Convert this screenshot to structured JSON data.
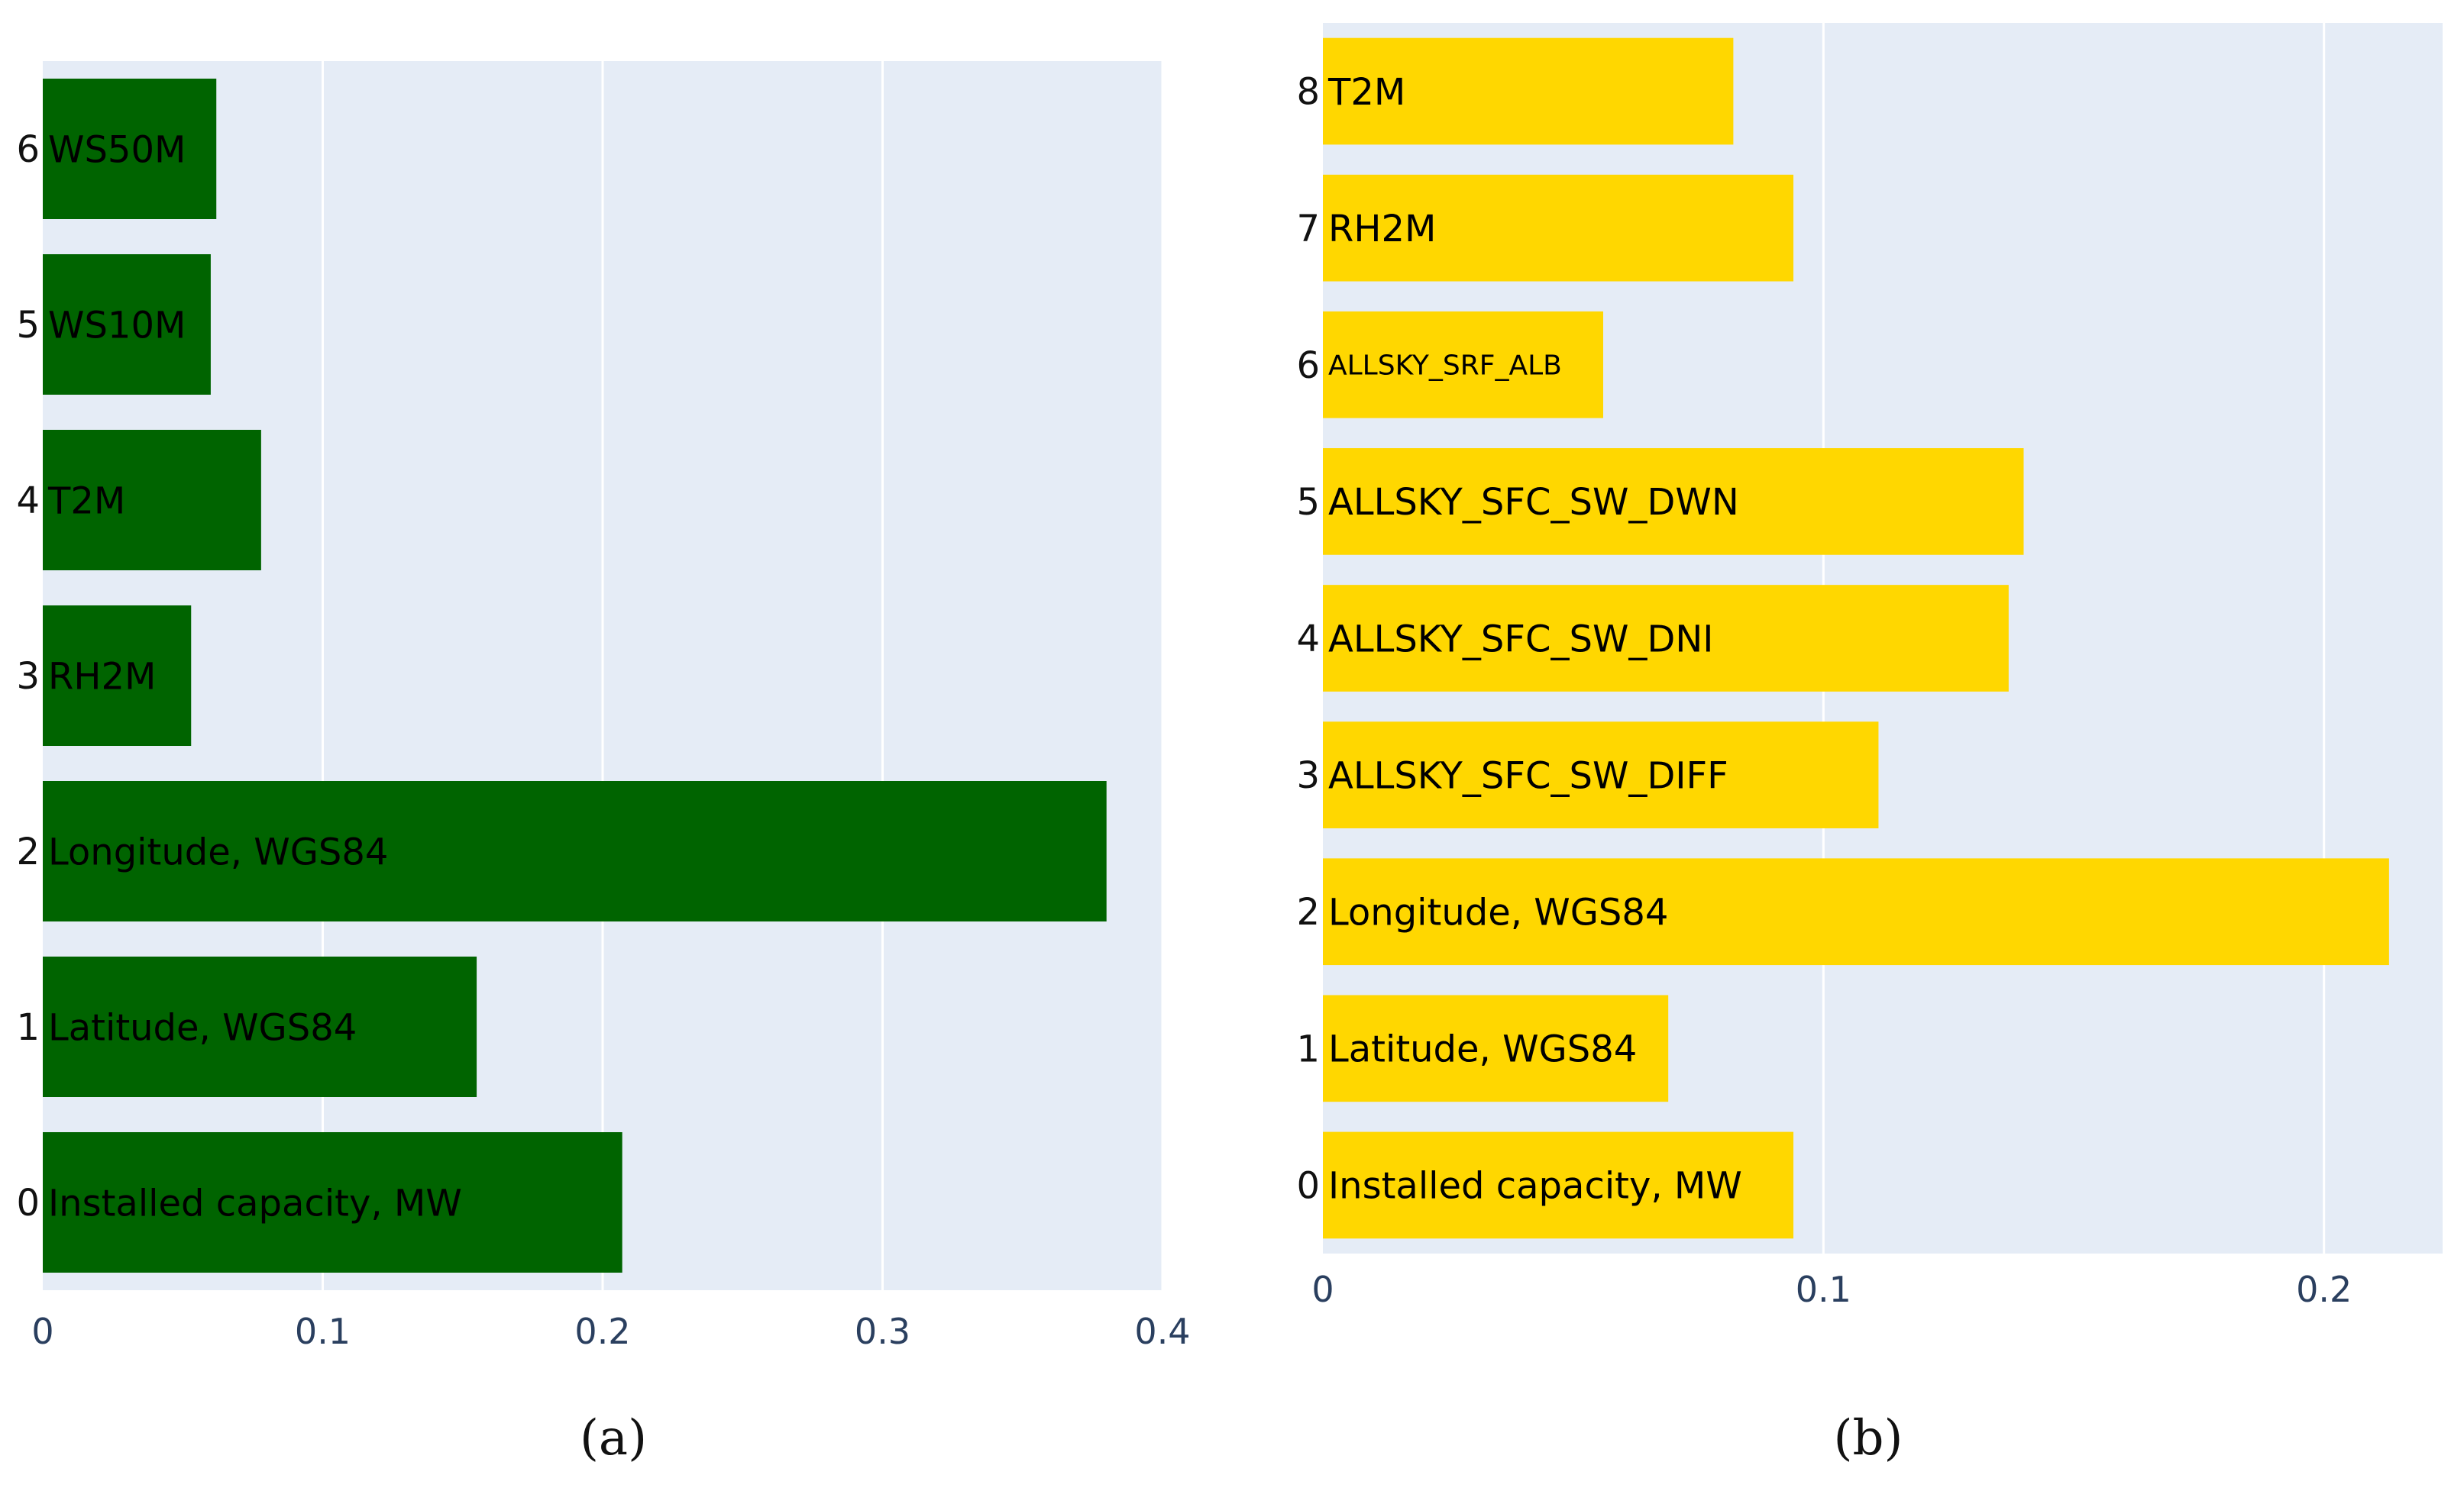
{
  "chart_data": [
    {
      "panel": "(a)",
      "type": "bar",
      "orientation": "horizontal",
      "title": "",
      "xlabel": "",
      "ylabel": "",
      "xlim": [
        0,
        0.4
      ],
      "xticks": [
        0,
        0.1,
        0.2,
        0.3,
        0.4
      ],
      "xtick_labels": [
        "0",
        "0.1",
        "0.2",
        "0.3",
        "0.4"
      ],
      "bar_color": "#006400",
      "plot_bg": "#e5ecf6",
      "grid": true,
      "categories": [
        "0",
        "1",
        "2",
        "3",
        "4",
        "5",
        "6"
      ],
      "labels": [
        "Installed capacity, MW",
        "Latitude, WGS84",
        "Longitude, WGS84",
        "RH2M",
        "T2M",
        "WS10M",
        "WS50M"
      ],
      "values": [
        0.207,
        0.155,
        0.38,
        0.053,
        0.078,
        0.06,
        0.062
      ]
    },
    {
      "panel": "(b)",
      "type": "bar",
      "orientation": "horizontal",
      "title": "",
      "xlabel": "",
      "ylabel": "",
      "xlim": [
        0,
        0.2237
      ],
      "xticks": [
        0,
        0.1,
        0.2
      ],
      "xtick_labels": [
        "0",
        "0.1",
        "0.2"
      ],
      "bar_color": "#ffd700",
      "plot_bg": "#e5ecf6",
      "grid": true,
      "categories": [
        "0",
        "1",
        "2",
        "3",
        "4",
        "5",
        "6",
        "7",
        "8"
      ],
      "labels": [
        "Installed capacity, MW",
        "Latitude, WGS84",
        "Longitude, WGS84",
        "ALLSKY_SFC_SW_DIFF",
        "ALLSKY_SFC_SW_DNI",
        "ALLSKY_SFC_SW_DWN",
        "ALLSKY_SRF_ALB",
        "RH2M",
        "T2M"
      ],
      "values": [
        0.094,
        0.069,
        0.213,
        0.111,
        0.137,
        0.14,
        0.056,
        0.094,
        0.082
      ]
    }
  ],
  "captions": [
    "(a)",
    "(b)"
  ]
}
